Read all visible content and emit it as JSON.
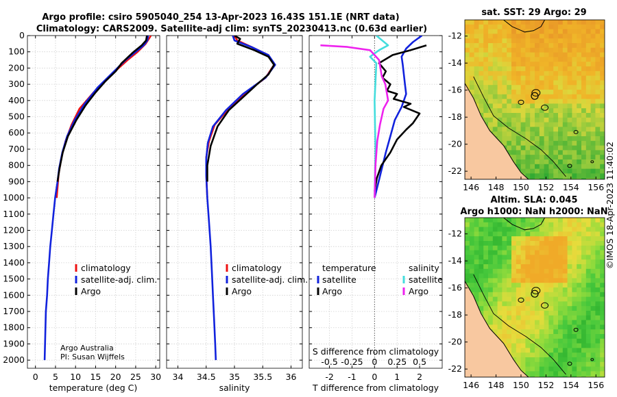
{
  "header": {
    "title_line1": "Argo profile: csiro 5905040_254 13-Apr-2023 16.43S 151.1E (NRT data)",
    "title_line2": "Climatology: CARS2009. Satellite-adj clim: synTS_20230413.nc (0.63d earlier)"
  },
  "colors": {
    "climatology": "#ee1111",
    "satellite": "#1122dd",
    "argo": "#000000",
    "sal_sat": "#44dddd",
    "sal_argo": "#ee22ee",
    "land": "#f8c8a0"
  },
  "chart_data": [
    {
      "type": "line",
      "id": "temperature",
      "xlabel": "temperature (deg C)",
      "ylabel": "",
      "xlim": [
        -2,
        31
      ],
      "ylim": [
        2050,
        0
      ],
      "xticks": [
        0,
        5,
        10,
        15,
        20,
        25,
        30
      ],
      "yticks": [
        0,
        100,
        200,
        300,
        400,
        500,
        600,
        700,
        800,
        900,
        1000,
        1100,
        1200,
        1300,
        1400,
        1500,
        1600,
        1700,
        1800,
        1900,
        2000
      ],
      "series": [
        {
          "name": "climatology",
          "color": "#ee1111",
          "x": [
            28.8,
            28.3,
            27.5,
            25.5,
            23.0,
            18.5,
            14.5,
            11.0,
            9.0,
            7.5,
            6.5,
            5.8,
            5.3
          ],
          "y": [
            0,
            20,
            50,
            100,
            150,
            250,
            350,
            450,
            550,
            650,
            750,
            850,
            1000
          ]
        },
        {
          "name": "satellite-adj. clim.",
          "color": "#1122dd",
          "x": [
            28.1,
            27.9,
            27.0,
            25.0,
            22.5,
            19.2,
            15.5,
            12.3,
            9.8,
            7.9,
            6.7,
            5.9,
            5.5,
            4.9,
            4.5,
            4.1,
            3.7,
            3.4,
            3.1,
            2.9,
            2.6,
            2.45,
            2.3
          ],
          "y": [
            0,
            30,
            60,
            100,
            150,
            230,
            320,
            420,
            520,
            620,
            720,
            820,
            900,
            1000,
            1100,
            1200,
            1300,
            1400,
            1500,
            1600,
            1700,
            1850,
            2000
          ]
        },
        {
          "name": "Argo",
          "color": "#000000",
          "x": [
            27.8,
            27.6,
            26.5,
            24.5,
            23.2,
            21.5,
            20.0,
            17.5,
            15.0,
            12.5,
            10.2,
            8.1,
            6.8,
            6.0,
            5.5
          ],
          "y": [
            0,
            30,
            60,
            100,
            130,
            170,
            220,
            280,
            350,
            430,
            520,
            620,
            720,
            820,
            900
          ]
        }
      ],
      "legend": {
        "position": "center-right",
        "entries": [
          "climatology",
          "satellite-adj. clim.",
          "Argo"
        ]
      },
      "annotations": [
        "Argo Australia",
        "PI: Susan Wijffels"
      ]
    },
    {
      "type": "line",
      "id": "salinity",
      "xlabel": "salinity",
      "xlim": [
        33.8,
        36.2
      ],
      "ylim": [
        2050,
        0
      ],
      "xticks": [
        34,
        34.5,
        35,
        35.5,
        36
      ],
      "series": [
        {
          "name": "climatology",
          "color": "#ee1111",
          "x": [
            35.0,
            35.05,
            35.3,
            35.6,
            35.7,
            35.55,
            35.2,
            34.9,
            34.65,
            34.55,
            34.5,
            34.5,
            34.52
          ],
          "y": [
            0,
            30,
            70,
            120,
            180,
            260,
            350,
            450,
            550,
            650,
            750,
            850,
            1000
          ]
        },
        {
          "name": "satellite-adj. clim.",
          "color": "#1122dd",
          "x": [
            34.97,
            35.0,
            35.3,
            35.6,
            35.72,
            35.55,
            35.15,
            34.85,
            34.62,
            34.53,
            34.5,
            34.5,
            34.52,
            34.55,
            34.58,
            34.6,
            34.62,
            34.64,
            34.66,
            34.67
          ],
          "y": [
            0,
            30,
            70,
            120,
            180,
            260,
            360,
            460,
            560,
            660,
            760,
            860,
            1000,
            1150,
            1300,
            1450,
            1600,
            1750,
            1900,
            2000
          ]
        },
        {
          "name": "Argo",
          "color": "#000000",
          "x": [
            35.0,
            35.1,
            35.05,
            35.35,
            35.6,
            35.7,
            35.6,
            35.4,
            35.15,
            34.9,
            34.7,
            34.58,
            34.52,
            34.52
          ],
          "y": [
            0,
            20,
            50,
            90,
            130,
            180,
            240,
            300,
            380,
            460,
            560,
            680,
            800,
            900
          ]
        }
      ],
      "legend": {
        "position": "center-right",
        "entries": [
          "climatology",
          "satellite-adj. clim.",
          "Argo"
        ]
      }
    },
    {
      "type": "line",
      "id": "difference",
      "xlabel": "T difference from climatology",
      "xlabel_top": "S difference from climatology",
      "xlim": [
        -2.9,
        3.0
      ],
      "xlim_S": [
        -0.725,
        0.75
      ],
      "ylim": [
        2050,
        0
      ],
      "xticks": [
        -2,
        -1,
        0,
        1,
        2
      ],
      "xticks_S": [
        -0.5,
        -0.25,
        0,
        0.25,
        0.5
      ],
      "xticks_S_labels": [
        "-0.5",
        "-0.25",
        "0",
        "0.25",
        "0.5"
      ],
      "zero_line": true,
      "series": [
        {
          "name": "temperature satellite",
          "color": "#1122dd",
          "axis": "T",
          "x": [
            2.1,
            1.7,
            1.4,
            1.2,
            1.25,
            1.3,
            1.35,
            1.4,
            1.2,
            0.9,
            0.7,
            0.5,
            0.25,
            0.0
          ],
          "y": [
            0,
            40,
            80,
            130,
            180,
            240,
            300,
            360,
            440,
            520,
            620,
            720,
            860,
            1000
          ]
        },
        {
          "name": "temperature Argo",
          "color": "#000000",
          "axis": "T",
          "x": [
            2.3,
            1.6,
            0.8,
            0.2,
            0.5,
            0.35,
            0.7,
            0.55,
            1.0,
            0.85,
            1.6,
            1.3,
            2.0,
            1.7,
            1.4,
            1.0,
            0.7,
            0.3,
            0.1,
            0.0
          ],
          "y": [
            60,
            90,
            120,
            170,
            220,
            260,
            300,
            340,
            360,
            390,
            420,
            440,
            480,
            540,
            580,
            640,
            720,
            800,
            880,
            960
          ]
        },
        {
          "name": "salinity satellite",
          "color": "#44dddd",
          "axis": "S",
          "x": [
            0.02,
            0.15,
            0.05,
            -0.05,
            0.02,
            0.0,
            0.01,
            0.0
          ],
          "y": [
            0,
            60,
            90,
            130,
            170,
            400,
            700,
            1000
          ]
        },
        {
          "name": "salinity Argo",
          "color": "#ee22ee",
          "axis": "S",
          "x": [
            -0.6,
            -0.3,
            -0.05,
            0.05,
            0.08,
            0.12,
            0.15,
            0.1,
            0.06,
            0.03,
            0.01,
            0.0
          ],
          "y": [
            60,
            70,
            90,
            150,
            250,
            300,
            400,
            450,
            550,
            650,
            800,
            1000
          ]
        }
      ],
      "legend": {
        "position": "center",
        "groups": [
          {
            "title": "temperature",
            "entries": [
              "satellite",
              "Argo"
            ]
          },
          {
            "title": "salinity",
            "entries": [
              "satellite",
              "Argo"
            ]
          }
        ]
      }
    },
    {
      "type": "heatmap",
      "id": "sst_map",
      "title": "sat. SST: 29 Argo: 29",
      "xticks": [
        146,
        148,
        150,
        152,
        154,
        156
      ],
      "yticks": [
        -12,
        -14,
        -16,
        -18,
        -20,
        -22
      ],
      "xlim": [
        145.5,
        156.7
      ],
      "ylim": [
        -22.6,
        -10.8
      ],
      "profile_location": [
        151.1,
        -16.43
      ]
    },
    {
      "type": "heatmap",
      "id": "sla_map",
      "title_line1": "Altim. SLA: 0.045",
      "title_line2": "Argo h1000: NaN h2000: NaN",
      "xticks": [
        146,
        148,
        150,
        152,
        154,
        156
      ],
      "yticks": [
        -12,
        -14,
        -16,
        -18,
        -20,
        -22
      ],
      "xlim": [
        145.5,
        156.7
      ],
      "ylim": [
        -22.6,
        -10.8
      ],
      "profile_location": [
        151.1,
        -16.43
      ]
    }
  ],
  "panels": {
    "temperature": {
      "legend": {
        "climatology": "climatology",
        "satellite": "satellite-adj. clim.",
        "argo": "Argo"
      },
      "annotation1": "Argo Australia",
      "annotation2": "PI: Susan Wijffels"
    },
    "salinity": {
      "legend": {
        "climatology": "climatology",
        "satellite": "satellite-adj. clim.",
        "argo": "Argo"
      }
    },
    "difference": {
      "legend": {
        "t_title": "temperature",
        "t_satellite": "satellite",
        "t_argo": "Argo",
        "s_title": "salinity",
        "s_satellite": "satellite",
        "s_argo": "Argo"
      }
    }
  },
  "credit": "©IMOS 18-Apr-2023 11:40:02"
}
